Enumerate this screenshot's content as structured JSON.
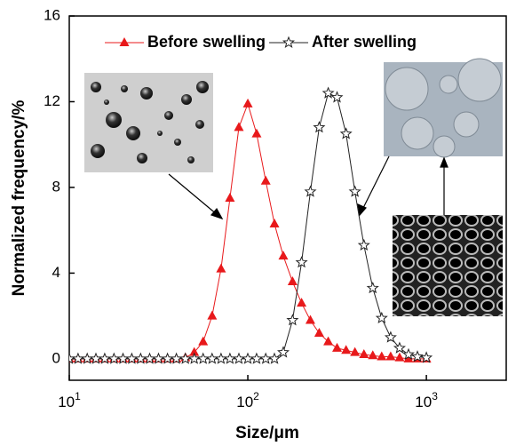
{
  "chart_data": {
    "type": "line",
    "x_label": "Size/μm",
    "y_label": "Normalized frequency/%",
    "log_x": true,
    "xlim": [
      10,
      2800
    ],
    "ylim": [
      -1,
      16
    ],
    "xticks": [
      {
        "value": 10,
        "label": "10",
        "sup": "1"
      },
      {
        "value": 100,
        "label": "10",
        "sup": "2"
      },
      {
        "value": 1000,
        "label": "10",
        "sup": "3"
      }
    ],
    "yticks": [
      0,
      4,
      8,
      12,
      16
    ],
    "x": [
      10,
      11.2,
      12.6,
      14.1,
      15.8,
      17.8,
      20,
      22.4,
      25.1,
      28.2,
      31.6,
      35.5,
      39.8,
      44.7,
      50.1,
      56.2,
      63.1,
      70.8,
      79.4,
      89.1,
      100,
      112,
      126,
      141,
      158,
      178,
      200,
      224,
      251,
      282,
      316,
      355,
      398,
      447,
      501,
      562,
      631,
      708,
      794,
      891,
      1000
    ],
    "series": [
      {
        "name": "Before swelling",
        "color": "#e8191b",
        "marker": "triangle",
        "values": [
          0,
          0,
          0,
          0,
          0,
          0,
          0,
          0,
          0,
          0,
          0,
          0,
          0,
          0.05,
          0.3,
          0.8,
          2,
          4.2,
          7.5,
          10.8,
          11.9,
          10.5,
          8.3,
          6.3,
          4.8,
          3.6,
          2.6,
          1.8,
          1.2,
          0.8,
          0.5,
          0.4,
          0.3,
          0.2,
          0.15,
          0.1,
          0.1,
          0.05,
          0,
          0,
          0
        ]
      },
      {
        "name": "After swelling",
        "color": "#222222",
        "marker": "star",
        "values": [
          0,
          0,
          0,
          0,
          0,
          0,
          0,
          0,
          0,
          0,
          0,
          0,
          0,
          0,
          0,
          0,
          0,
          0,
          0,
          0,
          0,
          0,
          0,
          0,
          0.3,
          1.8,
          4.5,
          7.8,
          10.8,
          12.4,
          12.2,
          10.5,
          7.8,
          5.3,
          3.3,
          1.9,
          1,
          0.5,
          0.2,
          0.1,
          0.05
        ]
      }
    ]
  }
}
